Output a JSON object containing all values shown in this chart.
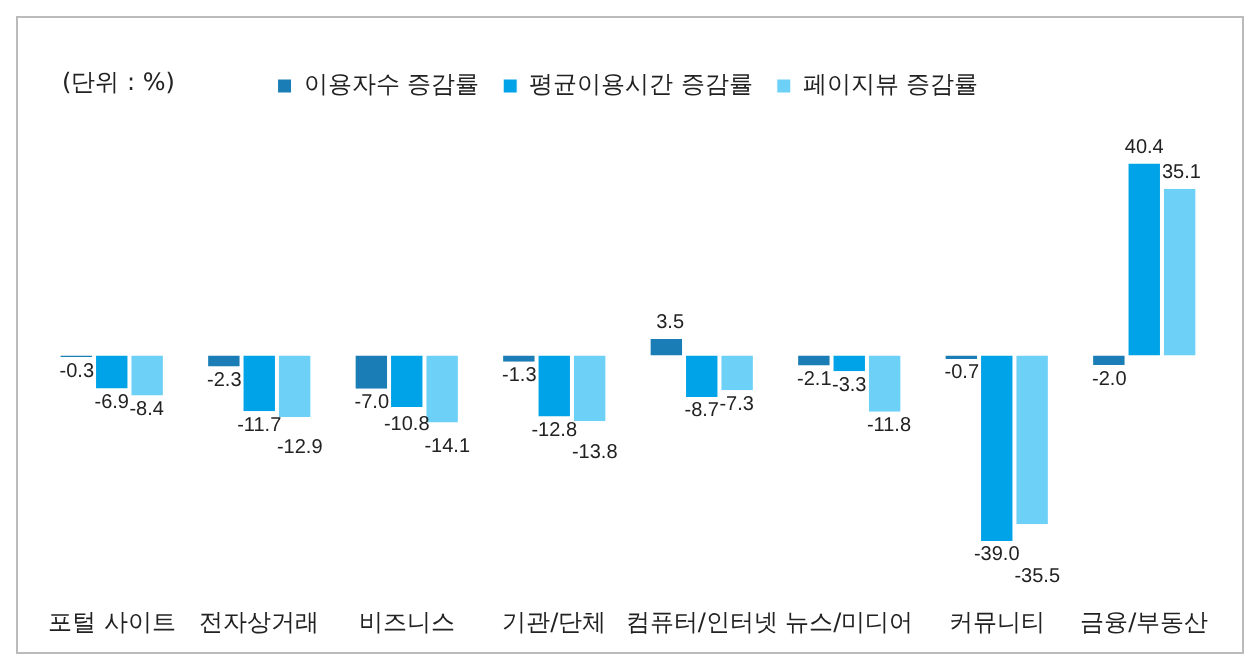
{
  "chart_data": {
    "type": "bar",
    "annotations": [
      "(단위 : %)"
    ],
    "legend": "top",
    "grid": false,
    "categories": [
      "포털 사이트",
      "전자상거래",
      "비즈니스",
      "기관/단체",
      "컴퓨터/인터넷",
      "뉴스/미디어",
      "커뮤니티",
      "금융/부동산"
    ],
    "series": [
      {
        "name": "이용자수 증감률",
        "color": "#1b7db5",
        "values": [
          -0.3,
          -2.3,
          -7.0,
          -1.3,
          3.5,
          -2.1,
          -0.7,
          -2.0
        ],
        "value_labels": [
          "-0.3",
          "-2.3",
          "-7.0",
          "-1.3",
          "3.5",
          "-2.1",
          "-0.7",
          "-2.0"
        ]
      },
      {
        "name": "평균이용시간 증감률",
        "color": "#00a3e8",
        "values": [
          -6.9,
          -11.7,
          -10.8,
          -12.8,
          -8.7,
          -3.3,
          -39.0,
          40.4
        ],
        "value_labels": [
          "-6.9",
          "-11.7",
          "-10.8",
          "-12.8",
          "-8.7",
          "-3.3",
          "-39.0",
          "40.4"
        ]
      },
      {
        "name": "페이지뷰 증감률",
        "color": "#6dd0f7",
        "values": [
          -8.4,
          -12.9,
          -14.1,
          -13.8,
          -7.3,
          -11.8,
          -35.5,
          35.1
        ],
        "value_labels": [
          "-8.4",
          "-12.9",
          "-14.1",
          "-13.8",
          "-7.3",
          "-11.8",
          "-35.5",
          "35.1"
        ]
      }
    ]
  }
}
